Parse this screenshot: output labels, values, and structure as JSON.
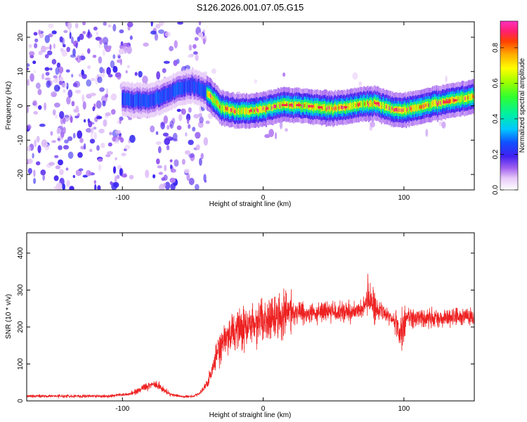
{
  "title": "S126.2026.001.07.05.G15",
  "chart_data": [
    {
      "type": "heatmap",
      "name": "spectrogram",
      "xlabel": "Height of straight line (km)",
      "ylabel": "Frequency (Hz)",
      "xlim": [
        -168,
        150
      ],
      "ylim": [
        -24.5,
        24.5
      ],
      "xticks": [
        -100,
        0,
        100
      ],
      "yticks": [
        -20,
        -10,
        0,
        10,
        20
      ],
      "colorbar": {
        "label": "Normalized spectral amplitude",
        "range": [
          0,
          0.95
        ],
        "ticks": [
          0.0,
          0.2,
          0.4,
          0.6,
          0.8
        ]
      },
      "ridge": {
        "description": "dominant frequency track",
        "x": [
          -100,
          -90,
          -80,
          -70,
          -60,
          -50,
          -40,
          -35,
          -30,
          -20,
          -10,
          0,
          10,
          20,
          30,
          40,
          50,
          60,
          70,
          80,
          90,
          100,
          110,
          120,
          130,
          140,
          150
        ],
        "freq": [
          2,
          1.5,
          1.5,
          3,
          5,
          6,
          4,
          2,
          -0.5,
          -1.5,
          -1.5,
          -1,
          0.2,
          0.3,
          0,
          -0.5,
          -0.8,
          -0.2,
          0.5,
          0.8,
          -0.8,
          -1.2,
          -0.5,
          0.5,
          1.2,
          2,
          2.5
        ]
      }
    },
    {
      "type": "line",
      "name": "snr",
      "xlabel": "Height of straight line (km)",
      "ylabel": "SNR (10 * v/v)",
      "xlim": [
        -168,
        150
      ],
      "ylim": [
        0,
        455
      ],
      "xticks": [
        -100,
        0,
        100
      ],
      "yticks": [
        0,
        100,
        200,
        300,
        400
      ],
      "color": "#ee2222",
      "series": [
        {
          "name": "SNR",
          "x": [
            -168,
            -140,
            -110,
            -95,
            -85,
            -78,
            -74,
            -70,
            -66,
            -62,
            -58,
            -54,
            -50,
            -45,
            -40,
            -37,
            -35,
            -32,
            -28,
            -25,
            -20,
            -15,
            -10,
            -5,
            0,
            5,
            10,
            15,
            20,
            25,
            30,
            40,
            50,
            60,
            70,
            75,
            78,
            80,
            85,
            90,
            95,
            98,
            100,
            103,
            110,
            120,
            130,
            140,
            150
          ],
          "values": [
            13,
            13,
            13,
            18,
            35,
            45,
            40,
            28,
            18,
            15,
            12,
            12,
            12,
            20,
            45,
            75,
            105,
            130,
            160,
            175,
            185,
            195,
            205,
            215,
            220,
            225,
            228,
            232,
            238,
            240,
            238,
            240,
            242,
            240,
            245,
            275,
            255,
            250,
            245,
            230,
            200,
            180,
            210,
            230,
            225,
            222,
            225,
            228,
            230
          ]
        }
      ]
    }
  ]
}
